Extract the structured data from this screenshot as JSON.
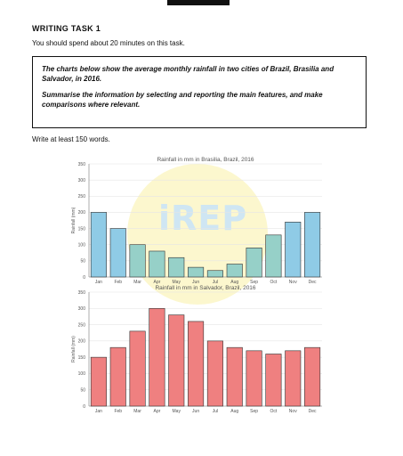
{
  "header": {
    "task_title": "WRITING TASK 1",
    "instruction": "You should spend about 20 minutes on this task.",
    "prompt_1": "The charts below show the average monthly rainfall in two cities of Brazil, Brasilia and Salvador, in 2016.",
    "prompt_2": "Summarise the information by selecting and reporting the main features, and make comparisons where relevant.",
    "word_count": "Write at least 150 words."
  },
  "watermark": {
    "text": "iREP"
  },
  "chart_data": [
    {
      "type": "bar",
      "title": "Rainfall in mm in Brasilia, Brazil, 2016",
      "ylabel": "Rainfall (mm)",
      "xlabel": "",
      "categories": [
        "Jan",
        "Feb",
        "Mar",
        "Apr",
        "May",
        "Jun",
        "Jul",
        "Aug",
        "Sep",
        "Oct",
        "Nov",
        "Dec"
      ],
      "values": [
        200,
        150,
        100,
        80,
        60,
        30,
        20,
        40,
        90,
        130,
        170,
        200
      ],
      "ylim": [
        0,
        350
      ],
      "yticks": [
        0,
        50,
        100,
        150,
        200,
        250,
        300,
        350
      ],
      "grid": true,
      "colors": [
        "#8fcbe6",
        "#8fcbe6",
        "#96d0c8",
        "#96d0c8",
        "#96d0c8",
        "#96d0c8",
        "#96d0c8",
        "#96d0c8",
        "#96d0c8",
        "#96d0c8",
        "#8fcbe6",
        "#8fcbe6"
      ]
    },
    {
      "type": "bar",
      "title": "Rainfall in mm in Salvador, Brazil, 2016",
      "ylabel": "Rainfall (mm)",
      "xlabel": "",
      "categories": [
        "Jan",
        "Feb",
        "Mar",
        "Apr",
        "May",
        "Jun",
        "Jul",
        "Aug",
        "Sep",
        "Oct",
        "Nov",
        "Dec"
      ],
      "values": [
        150,
        180,
        230,
        300,
        280,
        260,
        200,
        180,
        170,
        160,
        170,
        180
      ],
      "ylim": [
        0,
        350
      ],
      "yticks": [
        0,
        50,
        100,
        150,
        200,
        250,
        300,
        350
      ],
      "grid": true,
      "colors": [
        "#ef8080",
        "#ef8080",
        "#ef8080",
        "#ef8080",
        "#ef8080",
        "#ef8080",
        "#ef8080",
        "#ef8080",
        "#ef8080",
        "#ef8080",
        "#ef8080",
        "#ef8080"
      ]
    }
  ]
}
